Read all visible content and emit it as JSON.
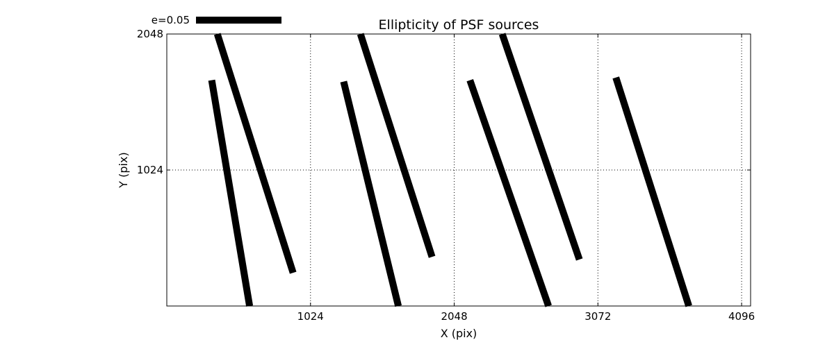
{
  "chart_data": {
    "type": "quiver",
    "title": "Ellipticity of PSF sources",
    "xlabel": "X (pix)",
    "ylabel": "Y (pix)",
    "xlim": [
      0,
      4160
    ],
    "ylim": [
      0,
      2048
    ],
    "xticks": [
      1024,
      2048,
      3072,
      4096
    ],
    "xtick_labels": [
      "1024",
      "2048",
      "3072",
      "4096"
    ],
    "yticks": [
      1024,
      2048
    ],
    "ytick_labels": [
      "1024",
      "2048"
    ],
    "grid": true,
    "grid_style": "dotted",
    "key": {
      "label": "e=0.05",
      "placement": "top-left, above axes",
      "length_pix": 610
    },
    "segments": [
      {
        "x1": 320,
        "y1": 1700,
        "x2": 590,
        "y2": 0
      },
      {
        "x1": 360,
        "y1": 2048,
        "x2": 900,
        "y2": 250
      },
      {
        "x1": 1260,
        "y1": 1690,
        "x2": 1650,
        "y2": 0
      },
      {
        "x1": 1380,
        "y1": 2048,
        "x2": 1890,
        "y2": 370
      },
      {
        "x1": 2160,
        "y1": 1700,
        "x2": 2720,
        "y2": 0
      },
      {
        "x1": 2390,
        "y1": 2048,
        "x2": 2940,
        "y2": 350
      },
      {
        "x1": 3200,
        "y1": 1720,
        "x2": 3720,
        "y2": 0
      }
    ],
    "color": "#000000"
  }
}
